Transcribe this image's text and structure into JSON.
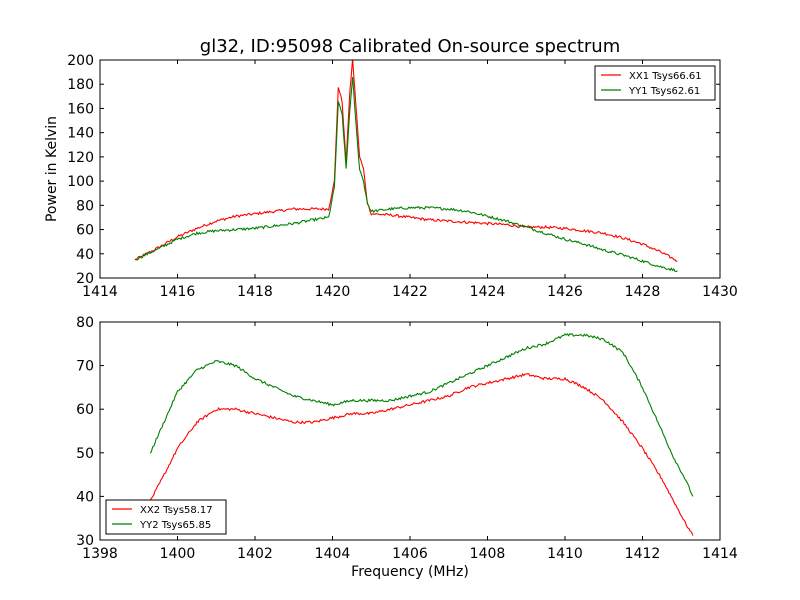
{
  "chart_data": [
    {
      "type": "line",
      "title": "gl32, ID:95098 Calibrated On-source spectrum",
      "xlabel": "",
      "ylabel": "Power in Kelvin",
      "xlim": [
        1414,
        1430
      ],
      "ylim": [
        20,
        200
      ],
      "xticks": [
        1414,
        1416,
        1418,
        1420,
        1422,
        1424,
        1426,
        1428,
        1430
      ],
      "yticks": [
        20,
        40,
        60,
        80,
        100,
        120,
        140,
        160,
        180,
        200
      ],
      "legend_position": "top-right",
      "grid": false,
      "series": [
        {
          "name": "XX1 Tsys66.61",
          "color": "#ff0000",
          "x": [
            1414.9,
            1415.5,
            1416,
            1416.5,
            1417,
            1417.5,
            1418,
            1418.5,
            1419,
            1419.5,
            1419.9,
            1420.05,
            1420.15,
            1420.25,
            1420.35,
            1420.45,
            1420.52,
            1420.6,
            1420.7,
            1420.8,
            1420.9,
            1421.0,
            1421.5,
            1422,
            1422.5,
            1423,
            1423.5,
            1424,
            1424.5,
            1425,
            1425.5,
            1426,
            1426.5,
            1427,
            1427.5,
            1428,
            1428.5,
            1428.9
          ],
          "y": [
            35,
            45,
            54,
            61,
            67,
            71,
            73,
            75,
            77,
            77,
            77,
            100,
            178,
            165,
            115,
            175,
            200,
            165,
            120,
            110,
            82,
            73,
            72,
            70,
            68,
            67,
            66,
            65,
            64,
            62,
            62,
            61,
            59,
            57,
            53,
            48,
            41,
            34
          ]
        },
        {
          "name": "YY1 Tsys62.61",
          "color": "#008000",
          "x": [
            1414.9,
            1415.5,
            1416,
            1416.5,
            1417,
            1417.5,
            1418,
            1418.5,
            1419,
            1419.5,
            1419.9,
            1420.05,
            1420.15,
            1420.25,
            1420.35,
            1420.45,
            1420.52,
            1420.6,
            1420.7,
            1420.8,
            1420.9,
            1421.0,
            1421.5,
            1422,
            1422.5,
            1423,
            1423.5,
            1424,
            1424.5,
            1425,
            1425.5,
            1426,
            1426.5,
            1427,
            1427.5,
            1428,
            1428.5,
            1428.9
          ],
          "y": [
            35,
            44,
            52,
            57,
            59,
            60,
            61,
            63,
            65,
            68,
            70,
            95,
            165,
            155,
            110,
            160,
            185,
            150,
            110,
            100,
            82,
            75,
            77,
            78,
            78,
            77,
            75,
            71,
            67,
            62,
            57,
            52,
            48,
            43,
            39,
            34,
            29,
            26
          ]
        }
      ]
    },
    {
      "type": "line",
      "title": "",
      "xlabel": "Frequency (MHz)",
      "ylabel": "",
      "xlim": [
        1398,
        1414
      ],
      "ylim": [
        30,
        80
      ],
      "xticks": [
        1398,
        1400,
        1402,
        1404,
        1406,
        1408,
        1410,
        1412,
        1414
      ],
      "yticks": [
        30,
        40,
        50,
        60,
        70,
        80
      ],
      "legend_position": "bottom-left",
      "grid": false,
      "series": [
        {
          "name": "XX2 Tsys58.17",
          "color": "#ff0000",
          "x": [
            1399.3,
            1399.6,
            1400,
            1400.5,
            1401,
            1401.5,
            1402,
            1402.5,
            1403,
            1403.5,
            1404,
            1404.5,
            1405,
            1405.5,
            1406,
            1406.5,
            1407,
            1407.5,
            1408,
            1408.5,
            1409,
            1409.5,
            1410,
            1410.5,
            1411,
            1411.5,
            1412,
            1412.5,
            1412.8,
            1413.1,
            1413.3
          ],
          "y": [
            39,
            44,
            51,
            57,
            60,
            60,
            59,
            58,
            57,
            57,
            58,
            59,
            59,
            60,
            61,
            62,
            63,
            65,
            66,
            67,
            68,
            67,
            67,
            65,
            62,
            57,
            51,
            44,
            39,
            34,
            31
          ]
        },
        {
          "name": "YY2 Tsys65.85",
          "color": "#008000",
          "x": [
            1399.3,
            1399.6,
            1400,
            1400.5,
            1401,
            1401.5,
            1402,
            1402.5,
            1403,
            1403.5,
            1404,
            1404.5,
            1405,
            1405.5,
            1406,
            1406.5,
            1407,
            1407.5,
            1408,
            1408.5,
            1409,
            1409.5,
            1410,
            1410.5,
            1411,
            1411.5,
            1412,
            1412.5,
            1412.8,
            1413.1,
            1413.3
          ],
          "y": [
            50,
            56,
            64,
            69,
            71,
            70,
            67,
            65,
            63,
            62,
            61,
            62,
            62,
            62,
            63,
            64,
            66,
            68,
            70,
            72,
            74,
            75,
            77,
            77,
            76,
            73,
            65,
            55,
            49,
            44,
            40
          ]
        }
      ]
    }
  ]
}
